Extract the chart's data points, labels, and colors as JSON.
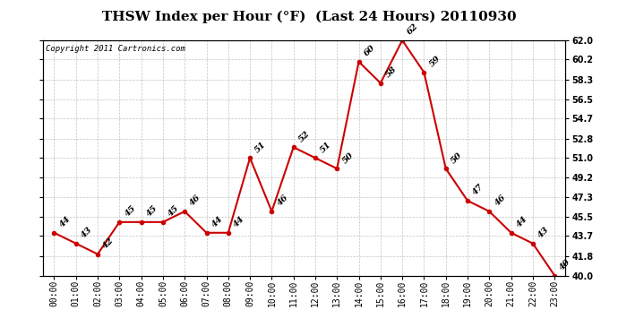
{
  "title": "THSW Index per Hour (°F)  (Last 24 Hours) 20110930",
  "copyright_text": "Copyright 2011 Cartronics.com",
  "hours": [
    "00:00",
    "01:00",
    "02:00",
    "03:00",
    "04:00",
    "05:00",
    "06:00",
    "07:00",
    "08:00",
    "09:00",
    "10:00",
    "11:00",
    "12:00",
    "13:00",
    "14:00",
    "15:00",
    "16:00",
    "17:00",
    "18:00",
    "19:00",
    "20:00",
    "21:00",
    "22:00",
    "23:00"
  ],
  "values": [
    44,
    43,
    42,
    45,
    45,
    45,
    46,
    44,
    44,
    51,
    46,
    52,
    51,
    50,
    60,
    58,
    62,
    59,
    50,
    47,
    46,
    44,
    43,
    40
  ],
  "ylim": [
    40.0,
    62.0
  ],
  "yticks": [
    40.0,
    41.8,
    43.7,
    45.5,
    47.3,
    49.2,
    51.0,
    52.8,
    54.7,
    56.5,
    58.3,
    60.2,
    62.0
  ],
  "line_color": "#cc0000",
  "marker_color": "#cc0000",
  "bg_color": "#ffffff",
  "grid_color": "#aaaaaa",
  "title_fontsize": 11,
  "label_fontsize": 7,
  "annotation_fontsize": 7,
  "copyright_fontsize": 6.5
}
